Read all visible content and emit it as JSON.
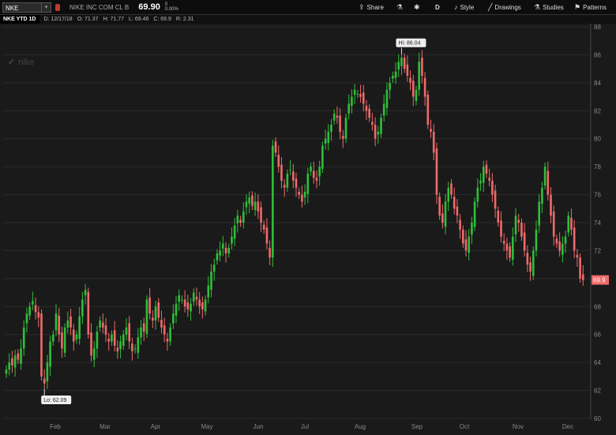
{
  "toolbar": {
    "symbol": "NKE",
    "company": "NIKE INC COM CL B",
    "last_price": "69.90",
    "change_top": "0",
    "change_bottom": "0.00%",
    "share_label": "Share",
    "period_label": "D",
    "style_label": "Style",
    "drawings_label": "Drawings",
    "studies_label": "Studies",
    "patterns_label": "Patterns"
  },
  "infobar": {
    "tag": "NKE YTD 1D",
    "date": "D: 12/17/18",
    "open": "O: 71.37",
    "high": "H: 71.77",
    "low": "L: 69.46",
    "close": "C: 69.9",
    "range": "R: 2.31"
  },
  "watermark": "nike",
  "colors": {
    "up": "#2fbf3a",
    "down": "#f06a6a",
    "bg": "#1a1a1a",
    "grid": "#2a2a2a"
  },
  "chart_data": {
    "type": "candlestick",
    "y_range": [
      60,
      88
    ],
    "y_ticks": [
      "60",
      "62",
      "64",
      "66",
      "68",
      "70",
      "72",
      "74",
      "76",
      "78",
      "80",
      "82",
      "84",
      "86",
      "88"
    ],
    "x_labels": [
      "Feb",
      "Mar",
      "Apr",
      "May",
      "Jun",
      "Jul",
      "Aug",
      "Sep",
      "Oct",
      "Nov",
      "Dec"
    ],
    "last_price_label": "69.9",
    "high_annotation": "Hi: 86.04",
    "low_annotation": "Lo: 62.09",
    "high_value": 86.04,
    "low_value": 62.09,
    "closes": [
      63.5,
      64.0,
      63.8,
      64.5,
      64.2,
      65.0,
      66.5,
      67.5,
      68.0,
      68.4,
      67.6,
      67.2,
      63.0,
      62.5,
      64.0,
      65.5,
      66.0,
      67.5,
      66.0,
      65.0,
      66.5,
      67.0,
      66.5,
      65.5,
      66.0,
      67.3,
      68.5,
      69.2,
      66.0,
      64.5,
      65.0,
      66.2,
      67.0,
      66.5,
      66.0,
      65.5,
      66.0,
      65.2,
      64.8,
      65.5,
      66.0,
      66.5,
      65.5,
      64.8,
      65.0,
      65.8,
      66.5,
      66.2,
      68.5,
      67.5,
      67.0,
      68.0,
      67.2,
      66.5,
      66.0,
      65.5,
      66.5,
      67.5,
      68.2,
      68.8,
      68.5,
      68.0,
      67.8,
      68.2,
      69.0,
      68.5,
      68.0,
      67.8,
      68.5,
      69.5,
      70.5,
      71.0,
      71.8,
      72.0,
      72.5,
      71.8,
      72.2,
      73.0,
      73.8,
      74.5,
      74.0,
      74.8,
      75.5,
      75.8,
      75.2,
      75.5,
      74.8,
      74.0,
      73.5,
      72.5,
      71.5,
      79.5,
      79.0,
      78.0,
      77.0,
      76.5,
      77.5,
      77.8,
      77.0,
      76.5,
      76.0,
      75.5,
      76.2,
      77.5,
      78.0,
      77.2,
      77.0,
      78.0,
      79.5,
      80.0,
      80.5,
      81.0,
      81.8,
      81.5,
      80.5,
      80.0,
      81.5,
      82.5,
      83.0,
      83.5,
      83.2,
      83.0,
      82.5,
      82.0,
      81.5,
      81.0,
      80.0,
      80.5,
      81.5,
      82.5,
      83.5,
      84.0,
      84.5,
      84.8,
      85.5,
      85.8,
      85.0,
      84.5,
      84.0,
      83.0,
      83.5,
      85.5,
      84.5,
      83.0,
      81.0,
      80.5,
      79.0,
      76.0,
      74.5,
      74.0,
      75.5,
      76.5,
      76.0,
      75.0,
      74.5,
      73.5,
      72.5,
      72.0,
      73.0,
      74.0,
      75.5,
      76.5,
      77.0,
      78.0,
      77.5,
      77.0,
      76.0,
      75.0,
      74.0,
      73.0,
      72.5,
      72.0,
      71.5,
      73.0,
      74.5,
      74.0,
      73.0,
      72.0,
      71.0,
      70.5,
      72.0,
      73.5,
      75.5,
      76.5,
      78.0,
      76.0,
      74.5,
      73.0,
      72.5,
      72.0,
      72.5,
      73.0,
      74.5,
      73.5,
      72.0,
      71.5,
      70.0,
      69.9
    ]
  }
}
